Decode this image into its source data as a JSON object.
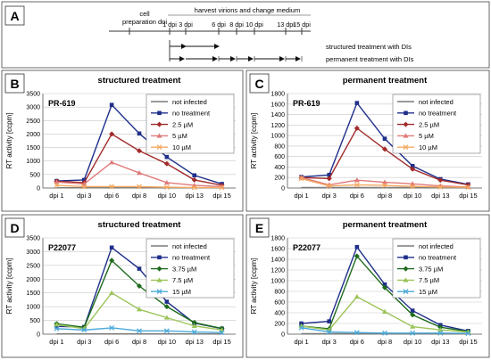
{
  "panel_a": {
    "letter": "A",
    "cell_prep_label_1": "cell",
    "cell_prep_label_2": "preparation doi",
    "harvest_label": "harvest virions and change medium",
    "ticks": [
      "1 dpi",
      "3 dpi",
      "6 dpi",
      "8 dpi",
      "10 dpi",
      "13 dpi",
      "15 dpi"
    ],
    "structured_label": "structured treatment with DIs",
    "permanent_label": "permanent treatment with DIs"
  },
  "chart_data": [
    {
      "type": "line",
      "panel": "B",
      "title": "structured treatment",
      "compound": "PR-619",
      "ylabel": "RT activity [ccpm]",
      "xlabel": "",
      "categories": [
        "dpi 1",
        "dpi 3",
        "dpi 6",
        "dpi 8",
        "dpi 10",
        "dpi 13",
        "dpi 15"
      ],
      "ylim": [
        0,
        3500
      ],
      "yticks": [
        0,
        500,
        1000,
        1500,
        2000,
        2500,
        3000,
        3500
      ],
      "grid": true,
      "legend_position": "top-right",
      "series": [
        {
          "name": "not infected",
          "color": "#7a7a7a",
          "marker": "none",
          "values": [
            10,
            10,
            10,
            10,
            10,
            10,
            10
          ]
        },
        {
          "name": "no treatment",
          "color": "#1f2f8a",
          "marker": "square",
          "values": [
            260,
            300,
            3080,
            2020,
            1150,
            470,
            150
          ]
        },
        {
          "name": "2.5 µM",
          "color": "#a12a2a",
          "marker": "diamond",
          "values": [
            250,
            200,
            2000,
            1380,
            900,
            300,
            100
          ]
        },
        {
          "name": "5 µM",
          "color": "#e07a7a",
          "marker": "triangle",
          "values": [
            220,
            150,
            950,
            560,
            200,
            100,
            50
          ]
        },
        {
          "name": "10 µM",
          "color": "#f4a860",
          "marker": "x",
          "values": [
            100,
            50,
            50,
            50,
            30,
            20,
            20
          ]
        }
      ]
    },
    {
      "type": "line",
      "panel": "C",
      "title": "permanent treatment",
      "compound": "PR-619",
      "ylabel": "RT activity [ccpm]",
      "xlabel": "",
      "categories": [
        "dpi 1",
        "dpi 3",
        "dpi 6",
        "dpi 8",
        "dpi 10",
        "dpi 13",
        "dpi 15"
      ],
      "ylim": [
        0,
        1800
      ],
      "yticks": [
        0,
        200,
        400,
        600,
        800,
        1000,
        1200,
        1400,
        1600,
        1800
      ],
      "grid": true,
      "legend_position": "top-right",
      "series": [
        {
          "name": "not infected",
          "color": "#7a7a7a",
          "marker": "none",
          "values": [
            10,
            10,
            10,
            10,
            10,
            10,
            10
          ]
        },
        {
          "name": "no treatment",
          "color": "#1f2f8a",
          "marker": "square",
          "values": [
            210,
            250,
            1620,
            940,
            420,
            170,
            70
          ]
        },
        {
          "name": "2.5 µM",
          "color": "#a12a2a",
          "marker": "diamond",
          "values": [
            200,
            180,
            1140,
            740,
            360,
            150,
            60
          ]
        },
        {
          "name": "5 µM",
          "color": "#e07a7a",
          "marker": "triangle",
          "values": [
            200,
            60,
            150,
            110,
            80,
            40,
            20
          ]
        },
        {
          "name": "10 µM",
          "color": "#f4a860",
          "marker": "x",
          "values": [
            180,
            40,
            60,
            50,
            30,
            20,
            15
          ]
        }
      ]
    },
    {
      "type": "line",
      "panel": "D",
      "title": "structured treatment",
      "compound": "P22077",
      "ylabel": "RT activity [ccpm]",
      "xlabel": "",
      "categories": [
        "dpi 1",
        "dpi 3",
        "dpi 6",
        "dpi 8",
        "dpi 10",
        "dpi 13",
        "dpi 15"
      ],
      "ylim": [
        0,
        3500
      ],
      "yticks": [
        0,
        500,
        1000,
        1500,
        2000,
        2500,
        3000,
        3500
      ],
      "grid": true,
      "legend_position": "top-right",
      "series": [
        {
          "name": "not infected",
          "color": "#7a7a7a",
          "marker": "none",
          "values": [
            10,
            10,
            10,
            10,
            10,
            10,
            10
          ]
        },
        {
          "name": "no treatment",
          "color": "#1f2f8a",
          "marker": "square",
          "values": [
            280,
            260,
            3150,
            2380,
            1180,
            400,
            200
          ]
        },
        {
          "name": "3.75 µM",
          "color": "#1e6b1e",
          "marker": "diamond",
          "values": [
            380,
            250,
            2680,
            1750,
            1000,
            420,
            210
          ]
        },
        {
          "name": "7.5 µM",
          "color": "#9cc45a",
          "marker": "triangle",
          "values": [
            350,
            200,
            1500,
            900,
            600,
            300,
            150
          ]
        },
        {
          "name": "15 µM",
          "color": "#4aa8d8",
          "marker": "x",
          "values": [
            200,
            150,
            230,
            120,
            120,
            80,
            60
          ]
        }
      ]
    },
    {
      "type": "line",
      "panel": "E",
      "title": "permanent treatment",
      "compound": "P22077",
      "ylabel": "RT activity [ccpm]",
      "xlabel": "",
      "categories": [
        "dpi 1",
        "dpi 3",
        "dpi 6",
        "dpi 8",
        "dpi 10",
        "dpi 13",
        "dpi 15"
      ],
      "ylim": [
        0,
        1800
      ],
      "yticks": [
        0,
        200,
        400,
        600,
        800,
        1000,
        1200,
        1400,
        1600,
        1800
      ],
      "grid": true,
      "legend_position": "top-right",
      "series": [
        {
          "name": "not infected",
          "color": "#7a7a7a",
          "marker": "none",
          "values": [
            10,
            10,
            10,
            10,
            10,
            10,
            10
          ]
        },
        {
          "name": "no treatment",
          "color": "#1f2f8a",
          "marker": "square",
          "values": [
            200,
            240,
            1630,
            930,
            440,
            170,
            60
          ]
        },
        {
          "name": "3.75 µM",
          "color": "#1e6b1e",
          "marker": "diamond",
          "values": [
            150,
            100,
            1460,
            870,
            360,
            130,
            50
          ]
        },
        {
          "name": "7.5 µM",
          "color": "#9cc45a",
          "marker": "triangle",
          "values": [
            150,
            80,
            700,
            420,
            140,
            80,
            40
          ]
        },
        {
          "name": "15 µM",
          "color": "#4aa8d8",
          "marker": "x",
          "values": [
            120,
            40,
            30,
            20,
            20,
            20,
            15
          ]
        }
      ]
    }
  ]
}
